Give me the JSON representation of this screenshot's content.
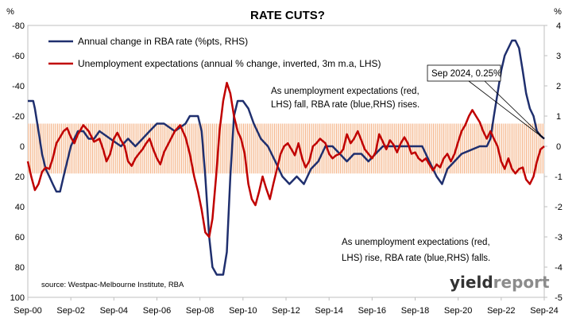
{
  "chart_data": {
    "type": "line",
    "title": "RATE CUTS?",
    "x_ticks": [
      "Sep-00",
      "Sep-02",
      "Sep-04",
      "Sep-06",
      "Sep-08",
      "Sep-10",
      "Sep-12",
      "Sep-14",
      "Sep-16",
      "Sep-18",
      "Sep-20",
      "Sep-22",
      "Sep-24"
    ],
    "x_range": [
      2000.67,
      2024.67
    ],
    "left_axis": {
      "unit_label": "%",
      "ticks": [
        "-80",
        "-60",
        "-40",
        "-20",
        "0",
        "20",
        "40",
        "60",
        "80",
        "100"
      ],
      "range": [
        -80,
        100
      ],
      "note": "inverted: -80 at top, 100 at bottom"
    },
    "right_axis": {
      "unit_label": "%",
      "ticks": [
        "4",
        "3",
        "2",
        "1",
        "0",
        "-1",
        "-2",
        "-3",
        "-4",
        "-5"
      ],
      "range": [
        -5,
        4
      ]
    },
    "series": [
      {
        "name": "Annual change in RBA rate (%pts, RHS)",
        "axis": "right",
        "color": "#1f2f6e",
        "points": [
          [
            2000.67,
            1.5
          ],
          [
            2000.92,
            1.5
          ],
          [
            2001.0,
            1.25
          ],
          [
            2001.17,
            0.5
          ],
          [
            2001.33,
            -0.25
          ],
          [
            2001.5,
            -0.75
          ],
          [
            2001.67,
            -1.0
          ],
          [
            2001.83,
            -1.25
          ],
          [
            2002.0,
            -1.5
          ],
          [
            2002.17,
            -1.5
          ],
          [
            2002.33,
            -1.0
          ],
          [
            2002.5,
            -0.5
          ],
          [
            2002.67,
            0.0
          ],
          [
            2002.83,
            0.25
          ],
          [
            2003.0,
            0.5
          ],
          [
            2003.25,
            0.5
          ],
          [
            2003.5,
            0.25
          ],
          [
            2003.75,
            0.25
          ],
          [
            2004.0,
            0.5
          ],
          [
            2004.5,
            0.25
          ],
          [
            2005.0,
            0.0
          ],
          [
            2005.33,
            0.25
          ],
          [
            2005.67,
            0.0
          ],
          [
            2006.0,
            0.25
          ],
          [
            2006.33,
            0.5
          ],
          [
            2006.67,
            0.75
          ],
          [
            2007.0,
            0.75
          ],
          [
            2007.5,
            0.5
          ],
          [
            2008.0,
            0.75
          ],
          [
            2008.2,
            1.0
          ],
          [
            2008.58,
            1.0
          ],
          [
            2008.75,
            0.5
          ],
          [
            2008.92,
            -1.0
          ],
          [
            2009.1,
            -3.0
          ],
          [
            2009.25,
            -4.0
          ],
          [
            2009.45,
            -4.25
          ],
          [
            2009.75,
            -4.25
          ],
          [
            2009.92,
            -3.5
          ],
          [
            2010.08,
            -1.0
          ],
          [
            2010.25,
            1.0
          ],
          [
            2010.42,
            1.5
          ],
          [
            2010.67,
            1.5
          ],
          [
            2010.92,
            1.25
          ],
          [
            2011.17,
            0.75
          ],
          [
            2011.5,
            0.25
          ],
          [
            2011.83,
            0.0
          ],
          [
            2012.17,
            -0.5
          ],
          [
            2012.5,
            -1.0
          ],
          [
            2012.83,
            -1.25
          ],
          [
            2013.17,
            -1.0
          ],
          [
            2013.5,
            -1.25
          ],
          [
            2013.83,
            -0.75
          ],
          [
            2014.17,
            -0.5
          ],
          [
            2014.5,
            0.0
          ],
          [
            2014.83,
            0.0
          ],
          [
            2015.17,
            -0.25
          ],
          [
            2015.5,
            -0.5
          ],
          [
            2015.83,
            -0.25
          ],
          [
            2016.17,
            -0.25
          ],
          [
            2016.5,
            -0.5
          ],
          [
            2016.83,
            -0.25
          ],
          [
            2017.17,
            0.0
          ],
          [
            2017.67,
            0.0
          ],
          [
            2018.17,
            0.0
          ],
          [
            2018.67,
            0.0
          ],
          [
            2019.0,
            0.0
          ],
          [
            2019.33,
            -0.5
          ],
          [
            2019.67,
            -1.0
          ],
          [
            2019.92,
            -1.25
          ],
          [
            2020.17,
            -0.75
          ],
          [
            2020.5,
            -0.5
          ],
          [
            2020.83,
            -0.25
          ],
          [
            2021.17,
            -0.15
          ],
          [
            2021.67,
            0.0
          ],
          [
            2022.0,
            0.0
          ],
          [
            2022.17,
            0.25
          ],
          [
            2022.33,
            1.0
          ],
          [
            2022.5,
            1.75
          ],
          [
            2022.67,
            2.5
          ],
          [
            2022.83,
            3.0
          ],
          [
            2023.0,
            3.25
          ],
          [
            2023.17,
            3.5
          ],
          [
            2023.33,
            3.5
          ],
          [
            2023.5,
            3.25
          ],
          [
            2023.67,
            2.5
          ],
          [
            2023.83,
            1.75
          ],
          [
            2024.0,
            1.25
          ],
          [
            2024.17,
            1.0
          ],
          [
            2024.33,
            0.5
          ],
          [
            2024.5,
            0.35
          ],
          [
            2024.67,
            0.25
          ]
        ]
      },
      {
        "name": "Unemployment expectations (annual % change, inverted, 3m m.a, LHS)",
        "axis": "left",
        "color": "#c00000",
        "points": [
          [
            2000.67,
            10
          ],
          [
            2000.83,
            20
          ],
          [
            2001.0,
            29
          ],
          [
            2001.17,
            25
          ],
          [
            2001.33,
            17
          ],
          [
            2001.5,
            14
          ],
          [
            2001.67,
            15
          ],
          [
            2001.83,
            8
          ],
          [
            2002.0,
            -2
          ],
          [
            2002.17,
            -6
          ],
          [
            2002.33,
            -10
          ],
          [
            2002.5,
            -12
          ],
          [
            2002.67,
            -6
          ],
          [
            2002.83,
            -2
          ],
          [
            2003.0,
            -8
          ],
          [
            2003.25,
            -14
          ],
          [
            2003.5,
            -10
          ],
          [
            2003.75,
            -3
          ],
          [
            2004.0,
            -5
          ],
          [
            2004.17,
            2
          ],
          [
            2004.33,
            10
          ],
          [
            2004.5,
            5
          ],
          [
            2004.67,
            -5
          ],
          [
            2004.83,
            -9
          ],
          [
            2005.0,
            -4
          ],
          [
            2005.17,
            0
          ],
          [
            2005.33,
            10
          ],
          [
            2005.5,
            13
          ],
          [
            2005.67,
            8
          ],
          [
            2005.83,
            5
          ],
          [
            2006.0,
            2
          ],
          [
            2006.17,
            -2
          ],
          [
            2006.33,
            -5
          ],
          [
            2006.5,
            2
          ],
          [
            2006.67,
            8
          ],
          [
            2006.83,
            12
          ],
          [
            2007.0,
            4
          ],
          [
            2007.25,
            -3
          ],
          [
            2007.5,
            -10
          ],
          [
            2007.75,
            -14
          ],
          [
            2008.0,
            -6
          ],
          [
            2008.2,
            5
          ],
          [
            2008.4,
            20
          ],
          [
            2008.58,
            30
          ],
          [
            2008.75,
            42
          ],
          [
            2008.92,
            57
          ],
          [
            2009.1,
            60
          ],
          [
            2009.25,
            48
          ],
          [
            2009.42,
            20
          ],
          [
            2009.58,
            -10
          ],
          [
            2009.75,
            -30
          ],
          [
            2009.92,
            -42
          ],
          [
            2010.08,
            -35
          ],
          [
            2010.25,
            -20
          ],
          [
            2010.42,
            -10
          ],
          [
            2010.58,
            -5
          ],
          [
            2010.75,
            5
          ],
          [
            2010.92,
            25
          ],
          [
            2011.08,
            35
          ],
          [
            2011.25,
            39
          ],
          [
            2011.42,
            30
          ],
          [
            2011.58,
            20
          ],
          [
            2011.75,
            28
          ],
          [
            2011.92,
            35
          ],
          [
            2012.08,
            25
          ],
          [
            2012.25,
            15
          ],
          [
            2012.42,
            5
          ],
          [
            2012.58,
            0
          ],
          [
            2012.75,
            -2
          ],
          [
            2012.92,
            2
          ],
          [
            2013.08,
            6
          ],
          [
            2013.25,
            -2
          ],
          [
            2013.42,
            8
          ],
          [
            2013.58,
            14
          ],
          [
            2013.75,
            10
          ],
          [
            2013.92,
            0
          ],
          [
            2014.08,
            -2
          ],
          [
            2014.25,
            -5
          ],
          [
            2014.5,
            -2
          ],
          [
            2014.67,
            5
          ],
          [
            2014.83,
            8
          ],
          [
            2015.0,
            6
          ],
          [
            2015.17,
            5
          ],
          [
            2015.33,
            2
          ],
          [
            2015.5,
            -8
          ],
          [
            2015.67,
            -2
          ],
          [
            2015.83,
            -5
          ],
          [
            2016.0,
            -10
          ],
          [
            2016.17,
            -4
          ],
          [
            2016.33,
            2
          ],
          [
            2016.5,
            5
          ],
          [
            2016.67,
            8
          ],
          [
            2016.83,
            4
          ],
          [
            2017.0,
            -8
          ],
          [
            2017.17,
            -3
          ],
          [
            2017.33,
            2
          ],
          [
            2017.5,
            -4
          ],
          [
            2017.67,
            -1
          ],
          [
            2017.83,
            4
          ],
          [
            2018.0,
            -2
          ],
          [
            2018.17,
            -6
          ],
          [
            2018.33,
            -2
          ],
          [
            2018.5,
            5
          ],
          [
            2018.67,
            4
          ],
          [
            2018.83,
            8
          ],
          [
            2019.0,
            10
          ],
          [
            2019.17,
            8
          ],
          [
            2019.33,
            12
          ],
          [
            2019.5,
            16
          ],
          [
            2019.67,
            12
          ],
          [
            2019.83,
            14
          ],
          [
            2020.0,
            8
          ],
          [
            2020.17,
            5
          ],
          [
            2020.33,
            10
          ],
          [
            2020.5,
            5
          ],
          [
            2020.67,
            -3
          ],
          [
            2020.83,
            -10
          ],
          [
            2021.0,
            -14
          ],
          [
            2021.17,
            -20
          ],
          [
            2021.33,
            -24
          ],
          [
            2021.5,
            -20
          ],
          [
            2021.67,
            -16
          ],
          [
            2021.83,
            -10
          ],
          [
            2022.0,
            -5
          ],
          [
            2022.17,
            -10
          ],
          [
            2022.33,
            -5
          ],
          [
            2022.5,
            0
          ],
          [
            2022.67,
            10
          ],
          [
            2022.83,
            15
          ],
          [
            2023.0,
            8
          ],
          [
            2023.17,
            15
          ],
          [
            2023.33,
            18
          ],
          [
            2023.5,
            15
          ],
          [
            2023.67,
            14
          ],
          [
            2023.83,
            22
          ],
          [
            2024.0,
            25
          ],
          [
            2024.17,
            20
          ],
          [
            2024.33,
            10
          ],
          [
            2024.5,
            2
          ],
          [
            2024.67,
            0
          ]
        ]
      }
    ],
    "band": {
      "left_from": -15,
      "left_to": 18,
      "color": "#f4b183",
      "style": "vertical hatch"
    },
    "annotations": [
      {
        "id": "callout",
        "text": "Sep 2024, 0.25%",
        "x": 2024.67,
        "y_right": 0.25
      },
      {
        "id": "note_top_line1",
        "text": "As unemployment expectations (red,"
      },
      {
        "id": "note_top_line2",
        "text": "LHS) fall, RBA rate (blue,RHS) rises."
      },
      {
        "id": "note_bottom_line1",
        "text": "As unemployment expectations (red,"
      },
      {
        "id": "note_bottom_line2",
        "text": "LHS) rise, RBA rate (blue,RHS) falls."
      }
    ],
    "source": "source: Westpac-Melbourne Institute, RBA",
    "logo": {
      "part1": "yield",
      "part2": "report"
    },
    "legend_position": "top-left",
    "grid": false
  }
}
